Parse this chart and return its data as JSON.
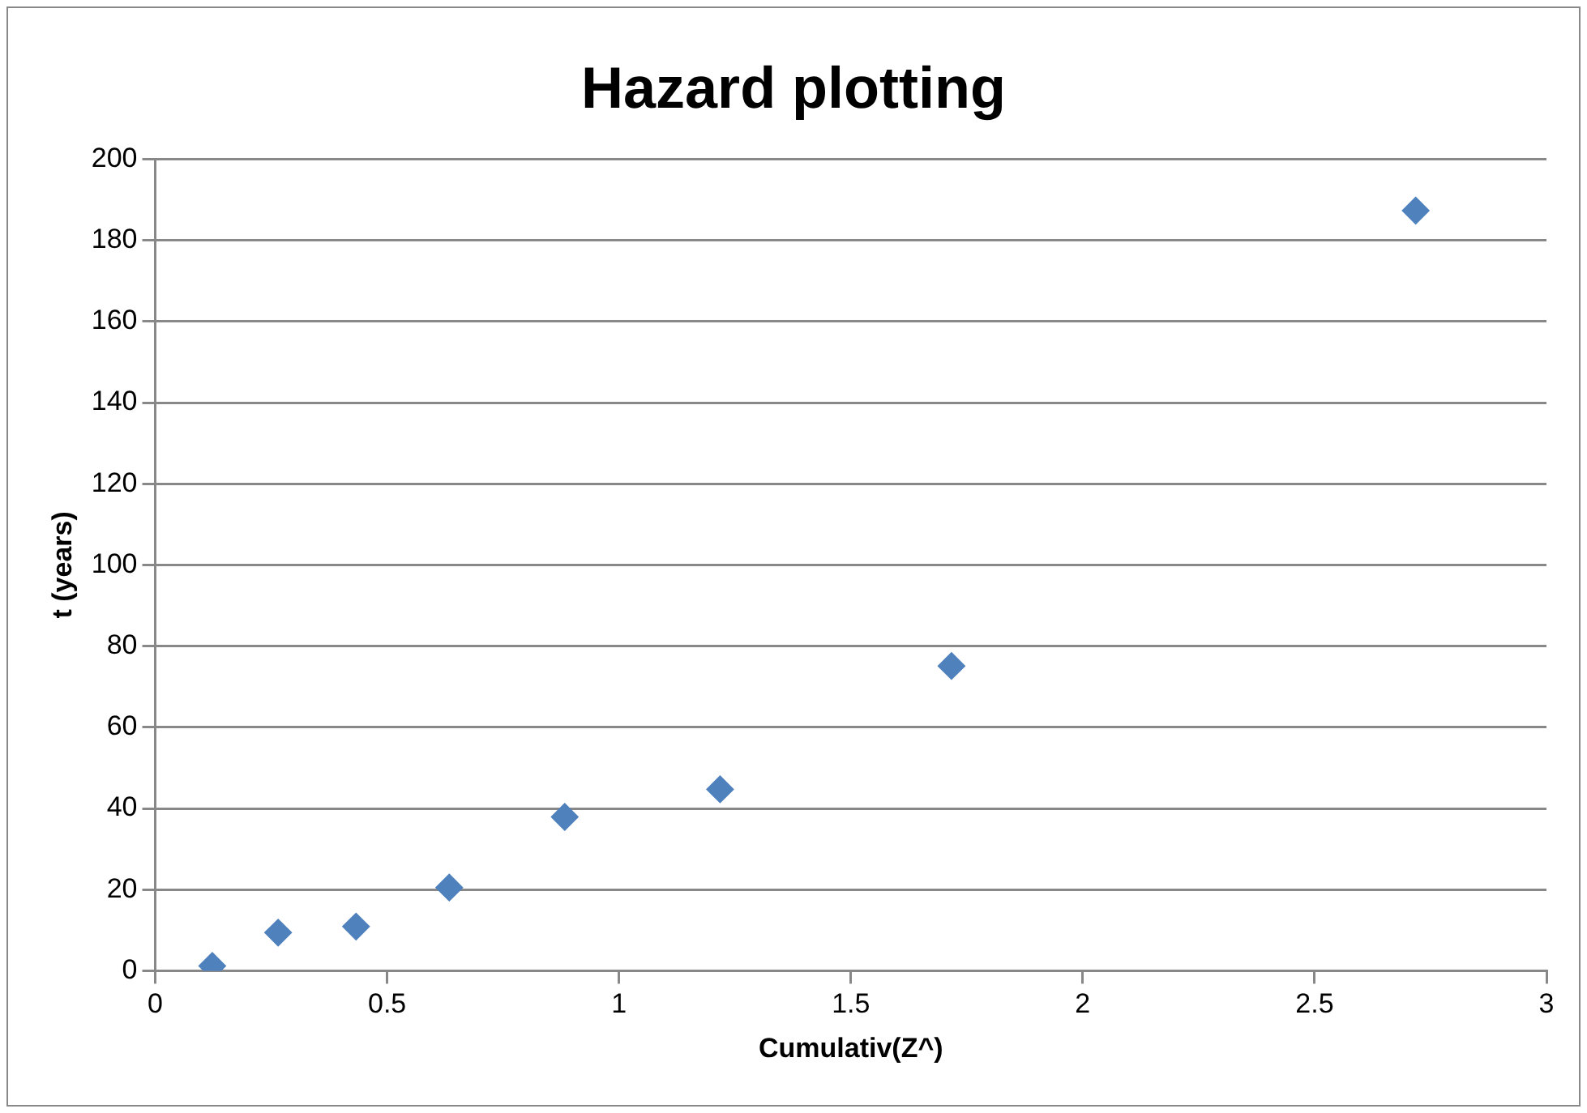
{
  "chart_data": {
    "type": "scatter",
    "title": "Hazard plotting",
    "xlabel": "Cumulativ(Z^)",
    "ylabel": "t (years)",
    "x": [
      0.123,
      0.265,
      0.433,
      0.634,
      0.883,
      1.218,
      1.717,
      2.718
    ],
    "series": [
      {
        "color": "#4f81bd",
        "values": [
          1.2,
          9.4,
          10.9,
          20.5,
          37.9,
          44.7,
          75.1,
          187.3
        ]
      }
    ],
    "xlim": [
      0,
      3
    ],
    "xticks": [
      0,
      0.5,
      1,
      1.5,
      2,
      2.5,
      3
    ],
    "ylim": [
      0,
      200
    ],
    "yticks": [
      0,
      20,
      40,
      60,
      80,
      100,
      120,
      140,
      160,
      180,
      200
    ],
    "grid": "y",
    "legend": false,
    "marker": "diamond"
  }
}
